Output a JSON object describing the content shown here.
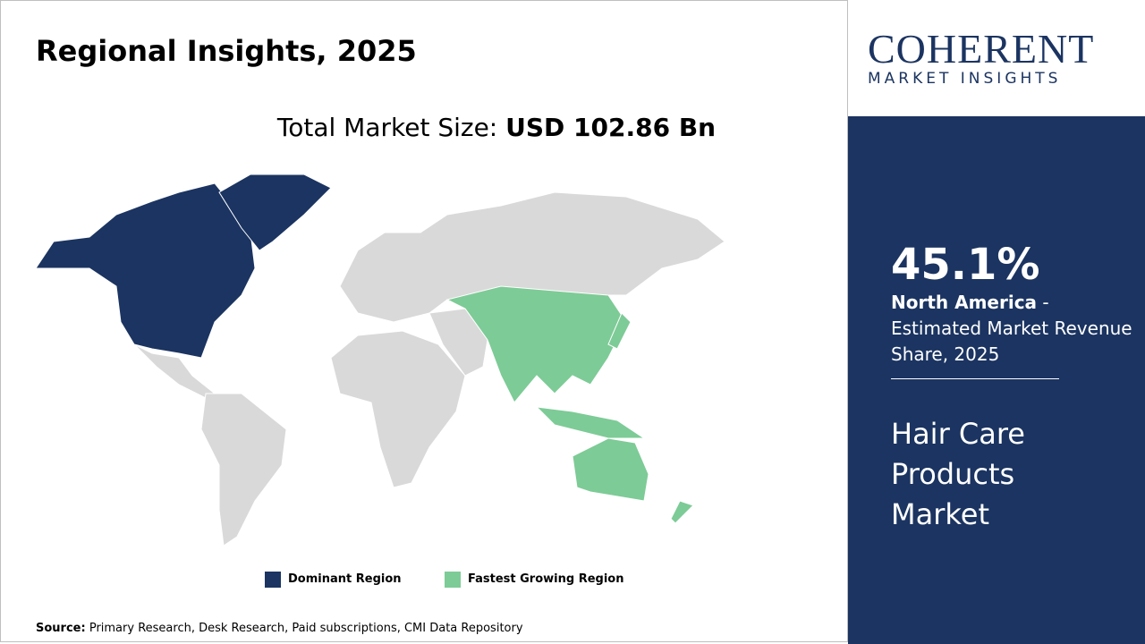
{
  "header": {
    "title": "Regional Insights, 2025"
  },
  "total_market_size": {
    "label": "Total Market Size:",
    "value": "USD 102.86 Bn"
  },
  "legend": {
    "items": [
      "Dominant Region",
      "Fastest Growing Region"
    ]
  },
  "source": {
    "label": "Source:",
    "text": "Primary Research, Desk Research, Paid subscriptions, CMI Data Repository"
  },
  "logo": {
    "name": "COHERENT",
    "tagline": "MARKET INSIGHTS"
  },
  "highlight": {
    "share": "45.1%",
    "region": "North America",
    "description": " - Estimated Market Revenue Share, 2025"
  },
  "market": {
    "name": "Hair Care Products Market"
  }
}
